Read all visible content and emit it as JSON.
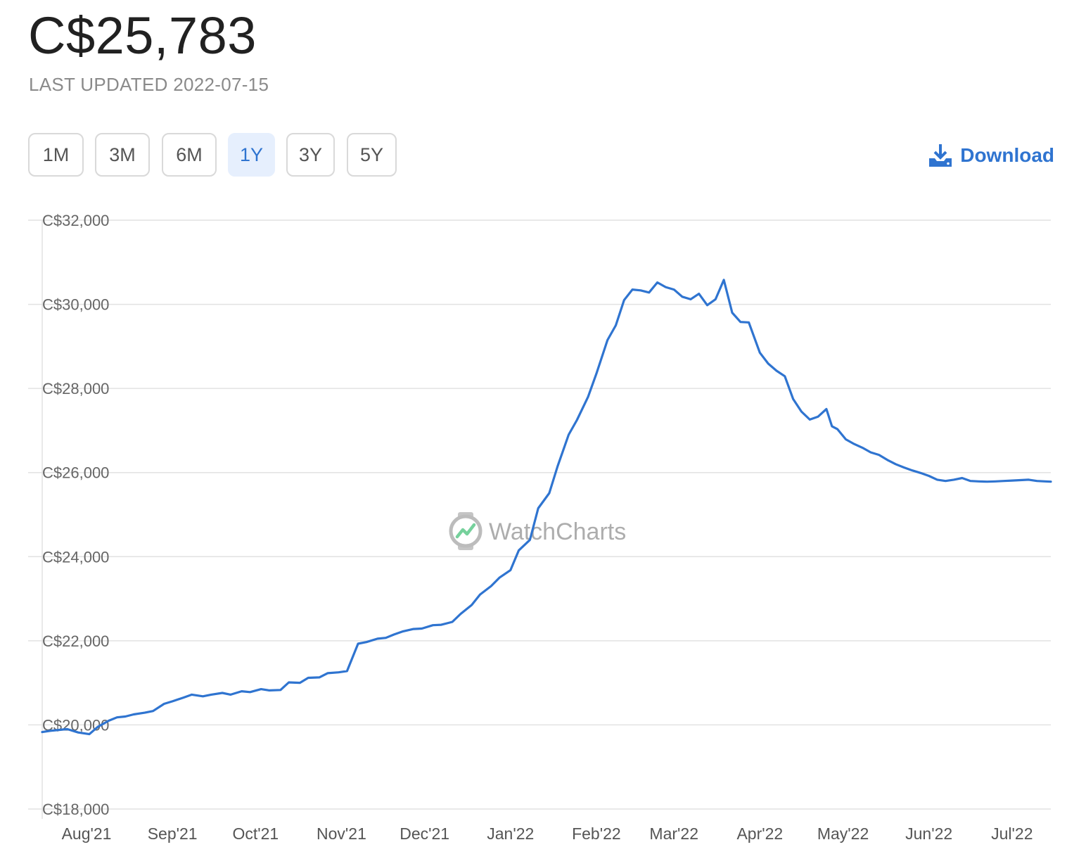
{
  "header": {
    "price": "C$25,783",
    "last_updated": "LAST UPDATED 2022-07-15"
  },
  "ranges": [
    {
      "label": "1M",
      "active": false
    },
    {
      "label": "3M",
      "active": false
    },
    {
      "label": "6M",
      "active": false
    },
    {
      "label": "1Y",
      "active": true
    },
    {
      "label": "3Y",
      "active": false
    },
    {
      "label": "5Y",
      "active": false
    }
  ],
  "download": {
    "label": "Download",
    "icon": "download-icon"
  },
  "watermark": {
    "text": "WatchCharts",
    "icon": "watch-logo-icon"
  },
  "colors": {
    "accent": "#2f74d0",
    "line": "#2f74d0",
    "grid": "#e0e0e0",
    "active_bg": "#e6effd"
  },
  "chart_data": {
    "type": "line",
    "title": "",
    "xlabel": "",
    "ylabel": "",
    "ylim": [
      18000,
      32000
    ],
    "y_ticks": [
      32000,
      30000,
      28000,
      26000,
      24000,
      22000,
      20000,
      18000
    ],
    "y_tick_labels": [
      "C$32,000",
      "C$30,000",
      "C$28,000",
      "C$26,000",
      "C$24,000",
      "C$22,000",
      "C$20,000",
      "C$18,000"
    ],
    "x_range": [
      "2021-07-16",
      "2022-07-15"
    ],
    "x_ticks": [
      "2021-08-01",
      "2021-09-01",
      "2021-10-01",
      "2021-11-01",
      "2021-12-01",
      "2022-01-01",
      "2022-02-01",
      "2022-03-01",
      "2022-04-01",
      "2022-05-01",
      "2022-06-01",
      "2022-07-01"
    ],
    "x_tick_labels": [
      "Aug'21",
      "Sep'21",
      "Oct'21",
      "Nov'21",
      "Dec'21",
      "Jan'22",
      "Feb'22",
      "Mar'22",
      "Apr'22",
      "May'22",
      "Jun'22",
      "Jul'22"
    ],
    "grid": true,
    "legend": "none",
    "series": [
      {
        "x": [
          "2021-07-16",
          "2021-07-19",
          "2021-07-22",
          "2021-07-25",
          "2021-07-29",
          "2021-08-02",
          "2021-08-05",
          "2021-08-09",
          "2021-08-12",
          "2021-08-15",
          "2021-08-18",
          "2021-08-22",
          "2021-08-25",
          "2021-08-29",
          "2021-09-01",
          "2021-09-05",
          "2021-09-08",
          "2021-09-12",
          "2021-09-15",
          "2021-09-19",
          "2021-09-22",
          "2021-09-26",
          "2021-09-29",
          "2021-10-03",
          "2021-10-06",
          "2021-10-10",
          "2021-10-13",
          "2021-10-17",
          "2021-10-20",
          "2021-10-24",
          "2021-10-27",
          "2021-10-31",
          "2021-11-03",
          "2021-11-07",
          "2021-11-10",
          "2021-11-14",
          "2021-11-17",
          "2021-11-20",
          "2021-11-23",
          "2021-11-27",
          "2021-11-30",
          "2021-12-04",
          "2021-12-07",
          "2021-12-11",
          "2021-12-14",
          "2021-12-18",
          "2021-12-21",
          "2021-12-25",
          "2021-12-28",
          "2022-01-01",
          "2022-01-04",
          "2022-01-08",
          "2022-01-11",
          "2022-01-15",
          "2022-01-18",
          "2022-01-22",
          "2022-01-25",
          "2022-01-29",
          "2022-02-01",
          "2022-02-05",
          "2022-02-08",
          "2022-02-11",
          "2022-02-14",
          "2022-02-17",
          "2022-02-20",
          "2022-02-23",
          "2022-02-26",
          "2022-03-01",
          "2022-03-04",
          "2022-03-07",
          "2022-03-10",
          "2022-03-13",
          "2022-03-16",
          "2022-03-19",
          "2022-03-22",
          "2022-03-25",
          "2022-03-28",
          "2022-04-01",
          "2022-04-04",
          "2022-04-07",
          "2022-04-10",
          "2022-04-13",
          "2022-04-16",
          "2022-04-19",
          "2022-04-22",
          "2022-04-25",
          "2022-04-27",
          "2022-04-29",
          "2022-05-02",
          "2022-05-05",
          "2022-05-08",
          "2022-05-11",
          "2022-05-14",
          "2022-05-17",
          "2022-05-20",
          "2022-05-23",
          "2022-05-26",
          "2022-05-29",
          "2022-06-01",
          "2022-06-04",
          "2022-06-07",
          "2022-06-10",
          "2022-06-13",
          "2022-06-16",
          "2022-06-19",
          "2022-06-22",
          "2022-06-25",
          "2022-06-28",
          "2022-07-01",
          "2022-07-04",
          "2022-07-07",
          "2022-07-10",
          "2022-07-13",
          "2022-07-15"
        ],
        "values": [
          19830,
          19860,
          19880,
          19900,
          19820,
          19780,
          19950,
          20100,
          20180,
          20200,
          20250,
          20290,
          20330,
          20500,
          20560,
          20650,
          20720,
          20680,
          20720,
          20760,
          20720,
          20800,
          20780,
          20850,
          20820,
          20830,
          21010,
          21000,
          21120,
          21130,
          21230,
          21250,
          21280,
          21930,
          21970,
          22050,
          22070,
          22150,
          22220,
          22280,
          22290,
          22370,
          22380,
          22450,
          22640,
          22850,
          23100,
          23300,
          23500,
          23680,
          24150,
          24400,
          25150,
          25510,
          26150,
          26900,
          27250,
          27800,
          28350,
          29150,
          29500,
          30100,
          30350,
          30330,
          30280,
          30520,
          30410,
          30350,
          30180,
          30120,
          30250,
          29980,
          30120,
          30580,
          29800,
          29580,
          29570,
          28850,
          28590,
          28420,
          28290,
          27750,
          27450,
          27260,
          27330,
          27510,
          27100,
          27030,
          26790,
          26680,
          26590,
          26480,
          26420,
          26300,
          26200,
          26120,
          26050,
          25990,
          25920,
          25830,
          25800,
          25830,
          25870,
          25800,
          25790,
          25783,
          25790,
          25800,
          25810,
          25820,
          25830,
          25800,
          25790,
          25783
        ],
        "values_note": ""
      }
    ]
  }
}
